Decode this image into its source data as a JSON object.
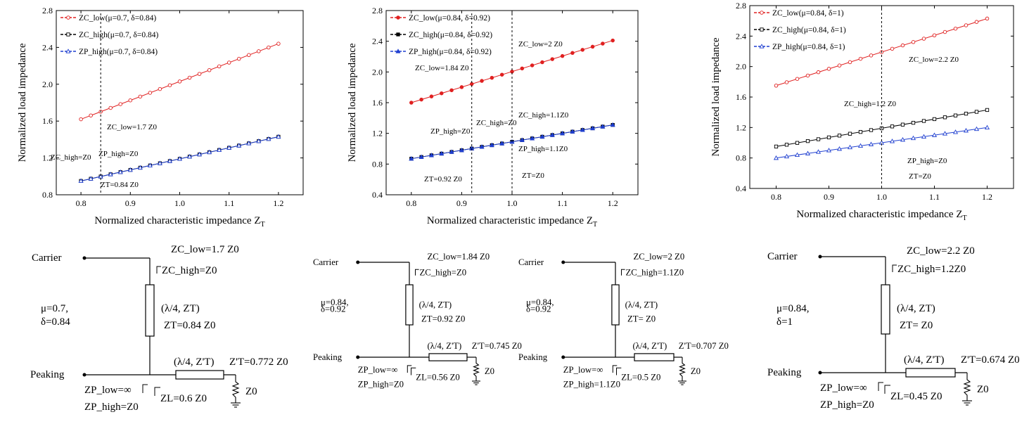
{
  "chart_data": [
    {
      "type": "line",
      "xlabel": "Normalized characteristic impedance ZT",
      "ylabel": "Normalized load impedance",
      "xlim": [
        0.75,
        1.25
      ],
      "ylim": [
        0.8,
        2.8
      ],
      "xticks": [
        "0.8",
        "0.9",
        "1.0",
        "1.1",
        "1.2"
      ],
      "yticks": [
        "0.8",
        "1.2",
        "1.6",
        "2.0",
        "2.4",
        "2.8"
      ],
      "x": [
        0.8,
        1.2
      ],
      "series": [
        {
          "name": "ZC_low(μ=0.7, δ=0.84)",
          "color": "#e02020",
          "marker": "circle-open",
          "values": [
            1.62,
            2.44
          ]
        },
        {
          "name": "ZC_high(μ=0.7, δ=0.84)",
          "color": "#000000",
          "marker": "square-open",
          "values": [
            0.95,
            1.43
          ]
        },
        {
          "name": "ZP_high(μ=0.7, δ=0.84)",
          "color": "#1f3fd0",
          "marker": "triangle-open",
          "values": [
            0.95,
            1.43
          ]
        }
      ],
      "marker_x": 0.84,
      "annotations": [
        "ZC_low=1.7 Z0",
        "ZC_high=Z0",
        "ZP_high=Z0",
        "ZT=0.84 Z0"
      ],
      "grid": false,
      "legend": "top-left"
    },
    {
      "type": "line",
      "xlabel": "Normalized characteristic impedance ZT",
      "ylabel": "Normalized load impedance",
      "xlim": [
        0.75,
        1.25
      ],
      "ylim": [
        0.4,
        2.8
      ],
      "xticks": [
        "0.8",
        "0.9",
        "1.0",
        "1.1",
        "1.2"
      ],
      "yticks": [
        "0.4",
        "0.8",
        "1.2",
        "1.6",
        "2.0",
        "2.4",
        "2.8"
      ],
      "x": [
        0.8,
        1.2
      ],
      "series": [
        {
          "name": "ZC_low(μ=0.84, δ=0.92)",
          "color": "#e02020",
          "marker": "circle-filled",
          "values": [
            1.6,
            2.41
          ]
        },
        {
          "name": "ZC_high(μ=0.84, δ=0.92)",
          "color": "#000000",
          "marker": "square-filled",
          "values": [
            0.87,
            1.31
          ]
        },
        {
          "name": "ZP_high(μ=0.84, δ=0.92)",
          "color": "#1f3fd0",
          "marker": "triangle-filled",
          "values": [
            0.87,
            1.31
          ]
        }
      ],
      "marker_x": [
        0.92,
        1.0
      ],
      "annotations": [
        "ZC_low=2 Z0",
        "ZC_low=1.84 Z0",
        "ZC_high=1.1Z0",
        "ZP_high=Z0",
        "ZC_high=Z0",
        "ZP_high=1.1Z0",
        "ZT=0.92 Z0",
        "ZT=Z0"
      ],
      "grid": false,
      "legend": "top-left"
    },
    {
      "type": "line",
      "xlabel": "Normalized characteristic impedance ZT",
      "ylabel": "Normalized load impedance",
      "xlim": [
        0.75,
        1.25
      ],
      "ylim": [
        0.4,
        2.8
      ],
      "xticks": [
        "0.8",
        "0.9",
        "1.0",
        "1.1",
        "1.2"
      ],
      "yticks": [
        "0.4",
        "0.8",
        "1.2",
        "1.6",
        "2.0",
        "2.4",
        "2.8"
      ],
      "x": [
        0.8,
        1.2
      ],
      "series": [
        {
          "name": "ZC_low(μ=0.84, δ=1)",
          "color": "#e02020",
          "marker": "circle-open",
          "values": [
            1.75,
            2.63
          ]
        },
        {
          "name": "ZC_high(μ=0.84, δ=1)",
          "color": "#000000",
          "marker": "square-open",
          "values": [
            0.95,
            1.43
          ]
        },
        {
          "name": "ZP_high(μ=0.84, δ=1)",
          "color": "#1f3fd0",
          "marker": "triangle-open",
          "values": [
            0.8,
            1.2
          ]
        }
      ],
      "marker_x": 1.0,
      "annotations": [
        "ZC_low=2.2 Z0",
        "ZC_high=1.2 Z0",
        "ZP_high=Z0",
        "ZT=Z0"
      ],
      "grid": false,
      "legend": "top-left"
    }
  ],
  "circuits": [
    {
      "carrier": "Carrier",
      "peaking": "Peaking",
      "params": [
        "μ=0.7,",
        "δ=0.84"
      ],
      "zc_low": "ZC_low=1.7 Z0",
      "zc_high": "ZC_high=Z0",
      "tl1": "(λ/4, ZT)",
      "zt": "ZT=0.84 Z0",
      "tl2": "(λ/4, Z'T)",
      "zt2": "Z'T=0.772 Z0",
      "zl": "ZL=0.6 Z0",
      "zp_low": "ZP_low=∞",
      "zp_high": "ZP_high=Z0",
      "z0": "Z0"
    },
    {
      "carrier": "Carrier",
      "peaking": "Peaking",
      "params": [
        "μ=0.84,",
        "δ=0.92"
      ],
      "zc_low": "ZC_low=1.84 Z0",
      "zc_high": "ZC_high=Z0",
      "tl1": "(λ/4, ZT)",
      "zt": "ZT=0.92 Z0",
      "tl2": "(λ/4, Z'T)",
      "zt2": "Z'T=0.745 Z0",
      "zl": "ZL=0.56 Z0",
      "zp_low": "ZP_low=∞",
      "zp_high": "ZP_high=Z0",
      "z0": "Z0"
    },
    {
      "carrier": "Carrier",
      "peaking": "Peaking",
      "params": [
        "μ=0.84,",
        "δ=0.92"
      ],
      "zc_low": "ZC_low=2 Z0",
      "zc_high": "ZC_high=1.1Z0",
      "tl1": "(λ/4, ZT)",
      "zt": "ZT= Z0",
      "tl2": "(λ/4, Z'T)",
      "zt2": "Z'T=0.707 Z0",
      "zl": "ZL=0.5 Z0",
      "zp_low": "ZP_low=∞",
      "zp_high": "ZP_high=1.1Z0",
      "z0": "Z0"
    },
    {
      "carrier": "Carrier",
      "peaking": "Peaking",
      "params": [
        "μ=0.84,",
        "δ=1"
      ],
      "zc_low": "ZC_low=2.2 Z0",
      "zc_high": "ZC_high=1.2Z0",
      "tl1": "(λ/4, ZT)",
      "zt": "ZT= Z0",
      "tl2": "(λ/4, Z'T)",
      "zt2": "Z'T=0.674 Z0",
      "zl": "ZL=0.45 Z0",
      "zp_low": "ZP_low=∞",
      "zp_high": "ZP_high=Z0",
      "z0": "Z0"
    }
  ]
}
